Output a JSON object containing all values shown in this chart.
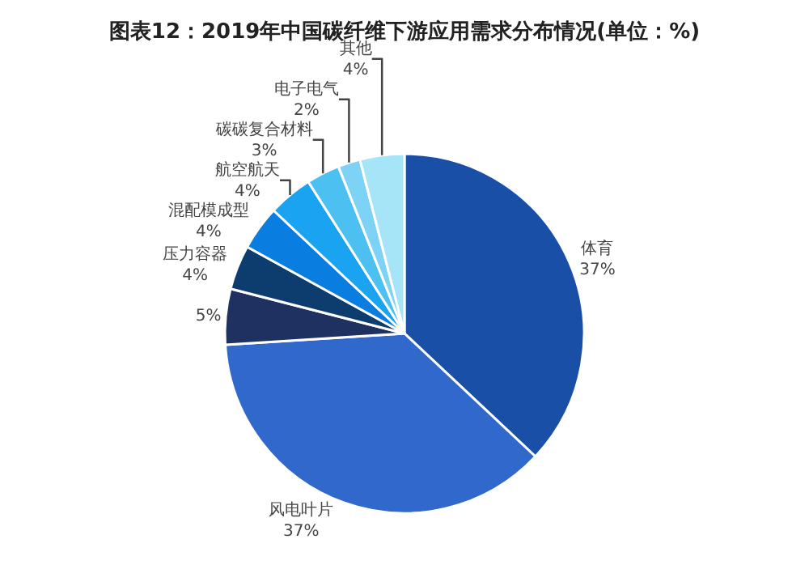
{
  "chart_data": {
    "type": "pie",
    "title": "图表12：2019年中国碳纤维下游应用需求分布情况(单位：%)",
    "categories": [
      "体育",
      "风电叶片",
      null,
      "压力容器",
      "混配模成型",
      "航空航天",
      "碳碳复合材料",
      "电子电气",
      "其他"
    ],
    "values": [
      37,
      37,
      5,
      4,
      4,
      4,
      3,
      2,
      4
    ],
    "value_labels": [
      "37%",
      "37%",
      "5%",
      "4%",
      "4%",
      "4%",
      "3%",
      "2%",
      "4%"
    ],
    "colors": [
      "#1a4fa8",
      "#3068cc",
      "#1f3160",
      "#0d3d6e",
      "#0a7de0",
      "#1aa3f0",
      "#4cc0f0",
      "#7dd3f5",
      "#a6e4f7"
    ],
    "legend": false
  }
}
